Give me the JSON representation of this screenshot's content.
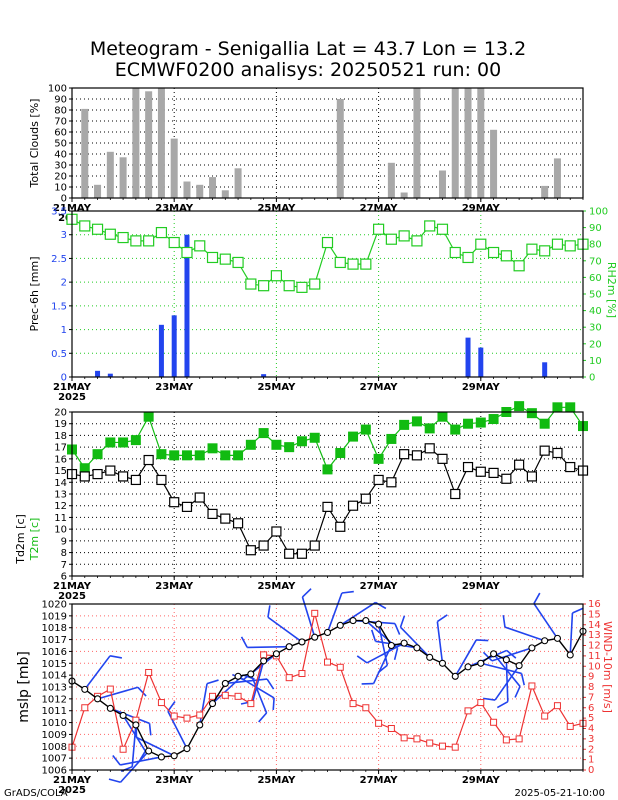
{
  "title_line1": "Meteogram - Senigallia Lat = 43.7 Lon = 13.2",
  "title_line2": "ECMWF0200 analisys: 20250521 run: 00",
  "footer_left": "GrADS/COLA",
  "footer_right": "2025-05-21-10:00",
  "colors": {
    "bar_gray": "#a8a8a8",
    "precip_blue": "#2244ee",
    "rh_green": "#22cc22",
    "t2m_green": "#11bb11",
    "td_black": "#000000",
    "wind_red": "#ee3333",
    "barb_blue": "#2244ee",
    "grid_red": "#ff6666"
  },
  "chart_data": [
    {
      "type": "bar",
      "panel": "clouds",
      "ylabel": "Total Clouds [%]",
      "ylim": [
        0,
        100
      ],
      "yticks": [
        0,
        10,
        20,
        30,
        40,
        50,
        60,
        70,
        80,
        90,
        100
      ],
      "xticks": [
        {
          "x": 0,
          "label": "21MAY",
          "sub": "2025"
        },
        {
          "x": 8,
          "label": "23MAY"
        },
        {
          "x": 16,
          "label": "25MAY"
        },
        {
          "x": 24,
          "label": "27MAY"
        },
        {
          "x": 32,
          "label": "29MAY"
        }
      ],
      "xlim": [
        0,
        40
      ],
      "grid": "dotted",
      "x": [
        1,
        2,
        3,
        4,
        5,
        6,
        7,
        8,
        9,
        10,
        11,
        12,
        13,
        14,
        15,
        16,
        17,
        18,
        19,
        20,
        21,
        22,
        23,
        24,
        25,
        26,
        27,
        28,
        29,
        30,
        31,
        32,
        33,
        34,
        35,
        36,
        37,
        38,
        39
      ],
      "values": [
        81,
        12,
        42,
        37,
        100,
        97,
        100,
        54,
        15,
        12,
        19,
        7,
        27,
        0,
        0,
        0,
        0,
        0,
        0,
        0,
        90,
        0,
        0,
        0,
        32,
        5,
        100,
        0,
        25,
        100,
        100,
        100,
        62,
        0,
        0,
        0,
        11,
        36,
        0
      ]
    },
    {
      "type": "bar",
      "panel": "precip",
      "ylabel": "Prec-6h [mm]",
      "ylim": [
        0,
        3.5
      ],
      "yticks": [
        0,
        0.5,
        1,
        1.5,
        2,
        2.5,
        3,
        3.5
      ],
      "xlim": [
        0,
        40
      ],
      "x": [
        1,
        2,
        3,
        4,
        5,
        6,
        7,
        8,
        9,
        10,
        11,
        12,
        13,
        14,
        15,
        16,
        17,
        18,
        19,
        20,
        21,
        22,
        23,
        24,
        25,
        26,
        27,
        28,
        29,
        30,
        31,
        32,
        33,
        34,
        35,
        36,
        37,
        38,
        39
      ],
      "values": [
        0,
        0.13,
        0.07,
        0,
        0,
        0,
        1.1,
        1.3,
        3.0,
        0,
        0,
        0,
        0,
        0,
        0.06,
        0,
        0,
        0,
        0,
        0,
        0,
        0,
        0,
        0,
        0,
        0,
        0,
        0,
        0,
        0,
        0.83,
        0.62,
        0,
        0,
        0,
        0,
        0.31,
        0,
        0
      ]
    },
    {
      "type": "line",
      "panel": "rh",
      "ylabel": "RH2m [%]",
      "ylim": [
        0,
        100
      ],
      "yticks": [
        0,
        10,
        20,
        30,
        40,
        50,
        60,
        70,
        80,
        90,
        100
      ],
      "xlim": [
        0,
        40
      ],
      "x": [
        0,
        1,
        2,
        3,
        4,
        5,
        6,
        7,
        8,
        9,
        10,
        11,
        12,
        13,
        14,
        15,
        16,
        17,
        18,
        19,
        20,
        21,
        22,
        23,
        24,
        25,
        26,
        27,
        28,
        29,
        30,
        31,
        32,
        33,
        34,
        35,
        36,
        37,
        38,
        39,
        40
      ],
      "values": [
        95,
        91,
        89,
        86,
        84,
        82,
        82,
        87,
        81,
        75,
        79,
        72,
        71,
        69,
        56,
        55,
        61,
        55,
        54,
        56,
        81,
        69,
        68,
        68,
        89,
        83,
        85,
        82,
        91,
        89,
        75,
        72,
        80,
        75,
        73,
        67,
        77,
        76,
        80,
        79,
        80
      ]
    },
    {
      "type": "line",
      "panel": "temperature",
      "ylabel": "Td2m [c]",
      "ylabel2": "T2m [c]",
      "ylim": [
        6,
        20
      ],
      "yticks": [
        6,
        7,
        8,
        9,
        10,
        11,
        12,
        13,
        14,
        15,
        16,
        17,
        18,
        19,
        20
      ],
      "xlim": [
        0,
        40
      ],
      "series": [
        {
          "name": "T2m [c]",
          "x": [
            0,
            1,
            2,
            3,
            4,
            5,
            6,
            7,
            8,
            9,
            10,
            11,
            12,
            13,
            14,
            15,
            16,
            17,
            18,
            19,
            20,
            21,
            22,
            23,
            24,
            25,
            26,
            27,
            28,
            29,
            30,
            31,
            32,
            33,
            34,
            35,
            36,
            37,
            38,
            39,
            40
          ],
          "values": [
            16.8,
            15.2,
            16.4,
            17.4,
            17.4,
            17.6,
            19.6,
            16.4,
            16.3,
            16.3,
            16.3,
            16.9,
            16.3,
            16.3,
            17.2,
            18.2,
            17.2,
            17.0,
            17.5,
            17.8,
            15.1,
            16.5,
            17.9,
            18.5,
            16.0,
            17.7,
            18.9,
            19.2,
            18.6,
            19.6,
            18.5,
            19.0,
            19.1,
            19.4,
            20.0,
            20.5,
            19.9,
            19.0,
            20.4,
            20.4,
            18.8
          ]
        },
        {
          "name": "Td2m [c]",
          "x": [
            0,
            1,
            2,
            3,
            4,
            5,
            6,
            7,
            8,
            9,
            10,
            11,
            12,
            13,
            14,
            15,
            16,
            17,
            18,
            19,
            20,
            21,
            22,
            23,
            24,
            25,
            26,
            27,
            28,
            29,
            30,
            31,
            32,
            33,
            34,
            35,
            36,
            37,
            38,
            39,
            40
          ],
          "values": [
            14.7,
            14.5,
            14.7,
            15.0,
            14.5,
            14.2,
            15.9,
            14.2,
            12.3,
            11.9,
            12.7,
            11.3,
            10.9,
            10.5,
            8.2,
            8.6,
            9.8,
            7.9,
            7.9,
            8.6,
            11.9,
            10.2,
            12.0,
            12.6,
            14.2,
            14.0,
            16.4,
            16.3,
            16.9,
            16.0,
            13.0,
            15.3,
            14.9,
            14.8,
            14.3,
            15.5,
            14.5,
            16.7,
            16.5,
            15.3,
            15.0
          ]
        }
      ]
    },
    {
      "type": "line",
      "panel": "pressure_wind",
      "ylabel": "mslp [mb]",
      "ylabel2": "WIND-10m [m/s]",
      "ylim": [
        1006,
        1020
      ],
      "yticks": [
        1006,
        1007,
        1008,
        1009,
        1010,
        1011,
        1012,
        1013,
        1014,
        1015,
        1016,
        1017,
        1018,
        1019,
        1020
      ],
      "y2lim": [
        0,
        16
      ],
      "y2ticks": [
        0,
        1,
        2,
        3,
        4,
        5,
        6,
        7,
        8,
        9,
        10,
        11,
        12,
        13,
        14,
        15,
        16
      ],
      "xlim": [
        0,
        40
      ],
      "series": [
        {
          "name": "mslp [mb]",
          "x": [
            0,
            1,
            2,
            3,
            4,
            5,
            6,
            7,
            8,
            9,
            10,
            11,
            12,
            13,
            14,
            15,
            16,
            17,
            18,
            19,
            20,
            21,
            22,
            23,
            24,
            25,
            26,
            27,
            28,
            29,
            30,
            31,
            32,
            33,
            34,
            35,
            36,
            37,
            38,
            39,
            40
          ],
          "values": [
            1013.5,
            1012.8,
            1012.0,
            1011.2,
            1010.6,
            1009.8,
            1007.6,
            1007.1,
            1007.2,
            1007.8,
            1009.8,
            1011.6,
            1013.3,
            1013.9,
            1014.1,
            1015.2,
            1015.8,
            1016.4,
            1016.8,
            1017.2,
            1017.6,
            1018.2,
            1018.6,
            1018.6,
            1018.3,
            1016.5,
            1016.7,
            1016.3,
            1015.5,
            1015.0,
            1013.9,
            1014.7,
            1015.0,
            1015.8,
            1015.3,
            1014.8,
            1016.3,
            1016.9,
            1017.1,
            1015.7,
            1017.7
          ]
        },
        {
          "name": "WIND-10m [m/s]",
          "x": [
            0,
            1,
            2,
            3,
            4,
            5,
            6,
            7,
            8,
            9,
            10,
            11,
            12,
            13,
            14,
            15,
            16,
            17,
            18,
            19,
            20,
            21,
            22,
            23,
            24,
            25,
            26,
            27,
            28,
            29,
            30,
            31,
            32,
            33,
            34,
            35,
            36,
            37,
            38,
            39,
            40
          ],
          "values": [
            2.2,
            6.0,
            7.1,
            7.8,
            2.0,
            4.8,
            9.4,
            6.5,
            5.2,
            5.0,
            5.3,
            7.1,
            7.2,
            7.1,
            6.4,
            11.1,
            11.0,
            8.9,
            9.3,
            15.1,
            10.4,
            9.9,
            6.4,
            6.0,
            4.5,
            4.0,
            3.1,
            3.0,
            2.6,
            2.3,
            2.2,
            5.7,
            6.5,
            4.6,
            2.9,
            3.0,
            8.1,
            5.2,
            6.2,
            4.2,
            4.5
          ]
        }
      ]
    }
  ]
}
